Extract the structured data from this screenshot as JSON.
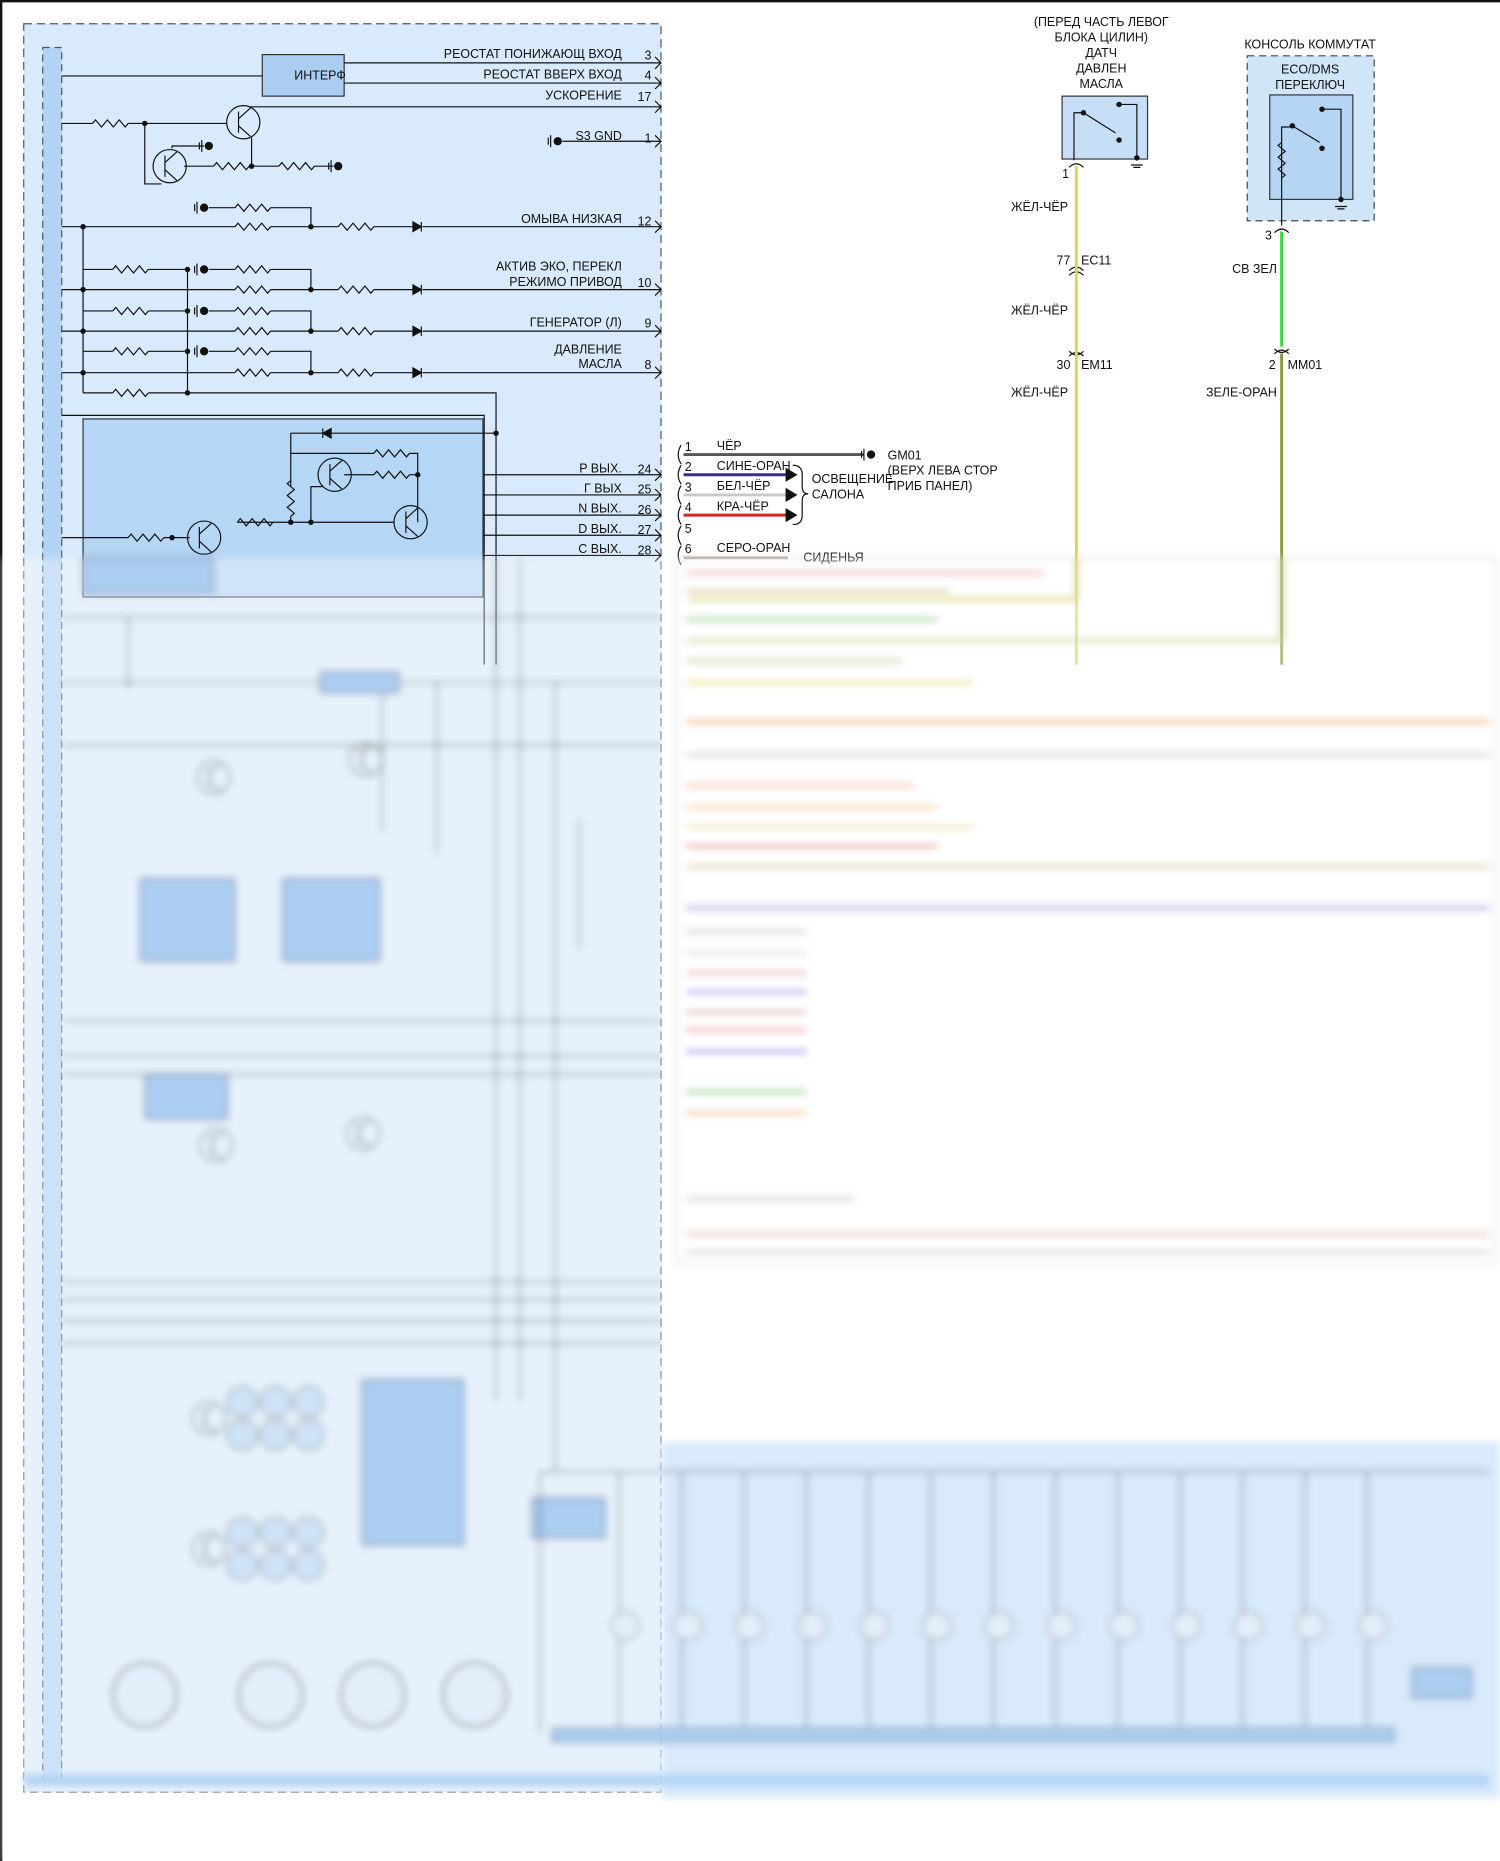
{
  "module": {
    "interface_block": "ИНТЕРФ",
    "pins": [
      {
        "label": "РЕОСТАТ ПОНИЖАЮЩ ВХОД",
        "pin": "3"
      },
      {
        "label": "РЕОСТАТ ВВЕРХ ВХОД",
        "pin": "4"
      },
      {
        "label": "УСКОРЕНИЕ",
        "pin": "17"
      },
      {
        "label": "S3 GND",
        "pin": "1"
      },
      {
        "label": "ОМЫВА НИЗКАЯ",
        "pin": "12"
      },
      {
        "label_line1": "АКТИВ ЭКО, ПЕРЕКЛ",
        "label_line2": "РЕЖИМО ПРИВОД",
        "pin": "10"
      },
      {
        "label": "ГЕНЕРАТОР (Л)",
        "pin": "9"
      },
      {
        "label_line1": "ДАВЛЕНИЕ",
        "label_line2": "МАСЛА",
        "pin": "8"
      }
    ],
    "gear_outputs": [
      {
        "label": "P ВЫХ.",
        "pin": "24"
      },
      {
        "label": "Г ВЫХ",
        "pin": "25"
      },
      {
        "label": "N ВЫХ.",
        "pin": "26"
      },
      {
        "label": "D ВЫХ.",
        "pin": "27"
      },
      {
        "label": "С ВЫХ.",
        "pin": "28"
      }
    ]
  },
  "connector": {
    "wires": [
      {
        "pin": "1",
        "color_name": "ЧЁР",
        "color": "#555555"
      },
      {
        "pin": "2",
        "color_name": "СИНЕ-ОРАН",
        "color": "#3a2aa0"
      },
      {
        "pin": "3",
        "color_name": "БЕЛ-ЧЁР",
        "color": "#c8c8c8"
      },
      {
        "pin": "4",
        "color_name": "КРА-ЧЁР",
        "color": "#c42a2a"
      },
      {
        "pin": "5",
        "color_name": ""
      },
      {
        "pin": "6",
        "color_name": "СЕРО-ОРАН",
        "color": "#b0a8a0"
      }
    ],
    "ground": "GM01",
    "ground_location_line1": "(ВЕРХ ЛЕВА СТОР",
    "ground_location_line2": "ПРИБ ПАНЕЛ)",
    "lighting_line1": "ОСВЕЩЕНИЕ",
    "lighting_line2": "САЛОНА",
    "seats": "СИДЕНЬЯ"
  },
  "oil_sensor": {
    "title_lines": [
      "(ПЕРЕД ЧАСТЬ ЛЕВОГ",
      "БЛОКА ЦИЛИН)",
      "ДАТЧ",
      "ДАВЛЕН",
      "МАСЛА"
    ],
    "pin": "1",
    "wire_1": "ЖЁЛ-ЧЁР",
    "conn1_pin": "77",
    "conn1": "EC11",
    "wire_2": "ЖЁЛ-ЧЁР",
    "conn2_pin": "30",
    "conn2": "EM11",
    "wire_3": "ЖЁЛ-ЧЁР",
    "wire_color": "#d6d65a"
  },
  "eco_switch": {
    "location": "КОНСОЛЬ КОММУТАТ",
    "title_line1": "ECO/DMS",
    "title_line2": "ПЕРЕКЛЮЧ",
    "pin": "3",
    "wire_1": "СВ ЗЕЛ",
    "conn_pin": "2",
    "conn": "MM01",
    "wire_2": "ЗЕЛЕ-ОРАН",
    "wire1_color": "#44d044",
    "wire2_color": "#8a9a3a"
  },
  "colors": {
    "module_fill": "#d8eafb",
    "bar_fill": "#b2d3f4",
    "block_fill": "#aacdf1"
  }
}
